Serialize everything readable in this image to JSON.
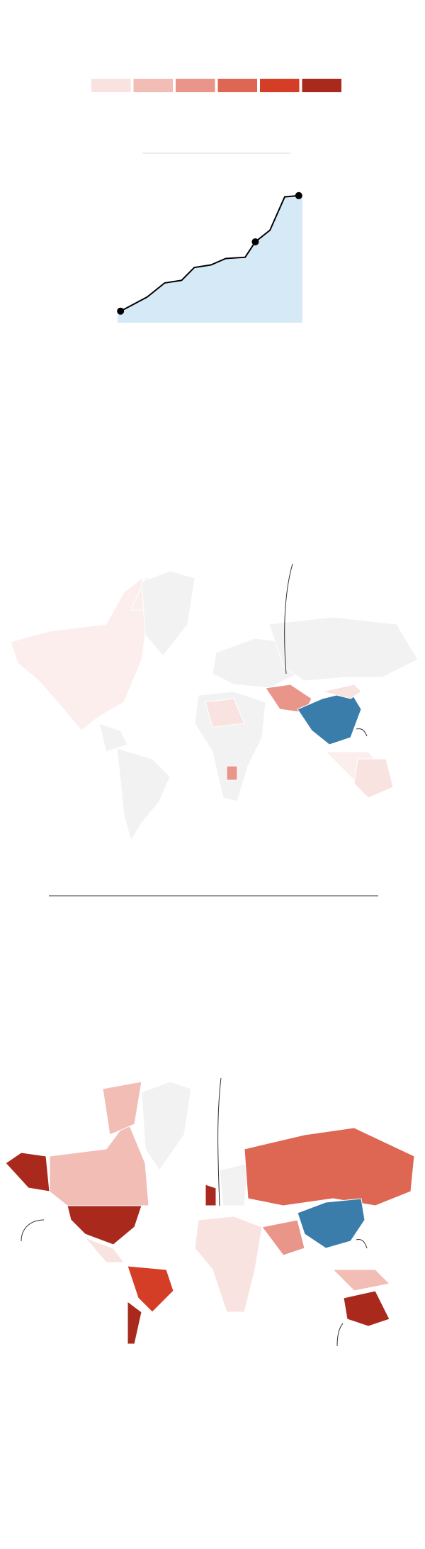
{
  "legend": {
    "colors": [
      "#f9e3e0",
      "#f1bdb5",
      "#e9958a",
      "#dd6752",
      "#d43d26",
      "#a92a1c"
    ]
  },
  "chart_data": {
    "type": "area",
    "x": [
      1.6,
      16,
      25.5,
      34.6,
      41.5,
      50.5,
      58.5,
      69,
      74.5,
      82.4,
      90.4,
      98
    ],
    "values": [
      9,
      20,
      31,
      33,
      43,
      45,
      50,
      51,
      63,
      72,
      98,
      99
    ],
    "highlight": [
      0,
      8,
      11
    ],
    "xlim": [
      0,
      100
    ],
    "ylim": [
      0,
      100
    ],
    "color": "#000000",
    "fill": "#d5e9f6"
  }
}
